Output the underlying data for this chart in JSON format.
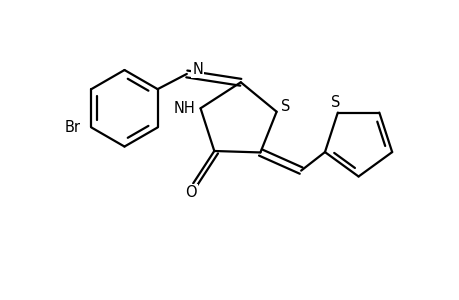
{
  "background_color": "#ffffff",
  "line_color": "#000000",
  "line_width": 1.6,
  "font_size": 10.5,
  "figsize": [
    4.6,
    3.0
  ],
  "dpi": 100,
  "xlim": [
    0,
    9.2
  ],
  "ylim": [
    0,
    6.0
  ]
}
